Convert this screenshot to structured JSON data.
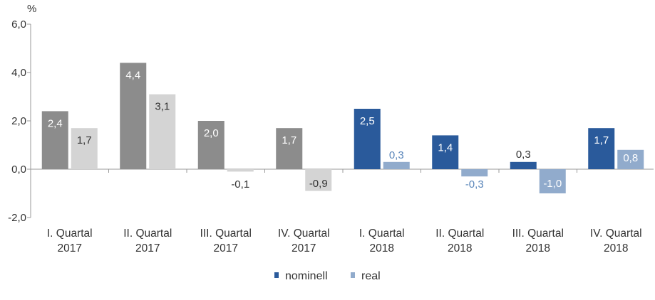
{
  "chart_data": {
    "type": "bar",
    "unit_label": "%",
    "categories": [
      [
        "I. Quartal",
        "2017"
      ],
      [
        "II. Quartal",
        "2017"
      ],
      [
        "III. Quartal",
        "2017"
      ],
      [
        "IV. Quartal",
        "2017"
      ],
      [
        "I. Quartal",
        "2018"
      ],
      [
        "II. Quartal",
        "2018"
      ],
      [
        "III. Quartal",
        "2018"
      ],
      [
        "IV. Quartal",
        "2018"
      ]
    ],
    "series": [
      {
        "name": "nominell",
        "values": [
          2.4,
          4.4,
          2.0,
          1.7,
          2.5,
          1.4,
          0.3,
          1.7
        ],
        "labels": [
          "2,4",
          "4,4",
          "2,0",
          "1,7",
          "2,5",
          "1,4",
          "0,3",
          "1,7"
        ],
        "colors": [
          "#8c8c8c",
          "#8c8c8c",
          "#8c8c8c",
          "#8c8c8c",
          "#2a5a9b",
          "#2a5a9b",
          "#2a5a9b",
          "#2a5a9b"
        ]
      },
      {
        "name": "real",
        "values": [
          1.7,
          3.1,
          -0.1,
          -0.9,
          0.3,
          -0.3,
          -1.0,
          0.8
        ],
        "labels": [
          "1,7",
          "3,1",
          "-0,1",
          "-0,9",
          "0,3",
          "-0,3",
          "-1,0",
          "0,8"
        ],
        "colors": [
          "#d4d4d4",
          "#d4d4d4",
          "#d4d4d4",
          "#d4d4d4",
          "#91abcc",
          "#91abcc",
          "#91abcc",
          "#91abcc"
        ]
      }
    ],
    "yticks": [
      "6,0",
      "4,0",
      "2,0",
      "0,0",
      "-2,0"
    ],
    "ytick_values": [
      6,
      4,
      2,
      0,
      -2
    ],
    "ylim": [
      -2,
      6
    ],
    "legend": [
      {
        "name": "nominell",
        "color": "#2a5a9b"
      },
      {
        "name": "real",
        "color": "#91abcc"
      }
    ],
    "legend_position": "bottom-center"
  }
}
